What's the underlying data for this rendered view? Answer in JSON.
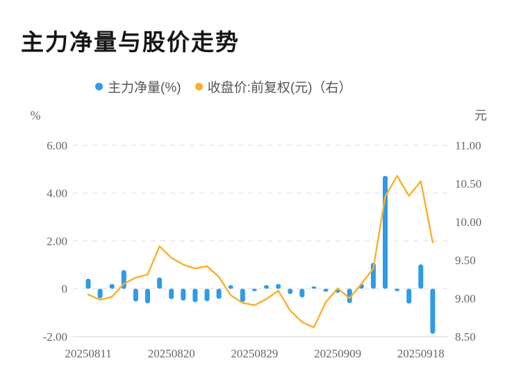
{
  "title": "主力净量与股价走势",
  "legend": [
    {
      "label": "主力净量(%)",
      "color": "#2F9BE8"
    },
    {
      "label": "收盘价:前复权(元)（右）",
      "color": "#FCAE28"
    }
  ],
  "axes": {
    "left_unit": "%",
    "right_unit": "元",
    "left_ticks": [
      {
        "label": "6.00",
        "v": 6
      },
      {
        "label": "4.00",
        "v": 4
      },
      {
        "label": "2.00",
        "v": 2
      },
      {
        "label": "0",
        "v": 0
      },
      {
        "label": "-2.00",
        "v": -2
      }
    ],
    "right_ticks": [
      {
        "label": "11.00",
        "v": 11
      },
      {
        "label": "10.50",
        "v": 10.5
      },
      {
        "label": "10.00",
        "v": 10
      },
      {
        "label": "9.50",
        "v": 9.5
      },
      {
        "label": "9.00",
        "v": 9
      },
      {
        "label": "8.50",
        "v": 8.5
      }
    ]
  },
  "chart_data": {
    "type": "bar+line",
    "title": "主力净量与股价走势",
    "x": [
      "20250811",
      "20250812",
      "20250813",
      "20250814",
      "20250815",
      "20250818",
      "20250819",
      "20250820",
      "20250821",
      "20250822",
      "20250825",
      "20250826",
      "20250827",
      "20250828",
      "20250829",
      "20250901",
      "20250902",
      "20250903",
      "20250904",
      "20250905",
      "20250908",
      "20250909",
      "20250910",
      "20250911",
      "20250912",
      "20250915",
      "20250916",
      "20250917",
      "20250918",
      "20250919"
    ],
    "x_tick_labels": [
      "20250811",
      "20250820",
      "20250829",
      "20250909",
      "20250918"
    ],
    "x_tick_indices": [
      0,
      7,
      14,
      21,
      28
    ],
    "series": [
      {
        "name": "主力净量(%)",
        "type": "bar",
        "axis": "left",
        "color": "#2F9BE8",
        "values": [
          0.42,
          -0.4,
          0.2,
          0.78,
          -0.53,
          -0.61,
          0.47,
          -0.43,
          -0.49,
          -0.56,
          -0.52,
          -0.42,
          0.15,
          -0.55,
          -0.1,
          0.15,
          0.2,
          -0.22,
          -0.36,
          0.1,
          -0.12,
          -0.17,
          -0.6,
          0.2,
          1.08,
          4.72,
          -0.1,
          -0.62,
          1.02,
          -1.88
        ]
      },
      {
        "name": "收盘价:前复权(元)",
        "type": "line",
        "axis": "right",
        "color": "#FCAE28",
        "values": [
          9.05,
          8.98,
          9.02,
          9.19,
          9.27,
          9.31,
          9.68,
          9.53,
          9.44,
          9.39,
          9.42,
          9.28,
          9.04,
          8.94,
          8.91,
          8.99,
          9.1,
          8.84,
          8.69,
          8.62,
          8.95,
          9.13,
          9.0,
          9.19,
          9.39,
          10.33,
          10.6,
          10.34,
          10.53,
          9.73
        ]
      }
    ],
    "left_axis_range": [
      -2,
      6
    ],
    "right_axis_range": [
      8.5,
      11
    ],
    "grid": "dashed horizontal lines",
    "legend_position": "top-center"
  },
  "colors": {
    "bar": "#2F9BE8",
    "line": "#FCAE28",
    "grid": "#E2E2E2",
    "axis_line": "#DFDFDF",
    "axis_text": "#666666"
  }
}
